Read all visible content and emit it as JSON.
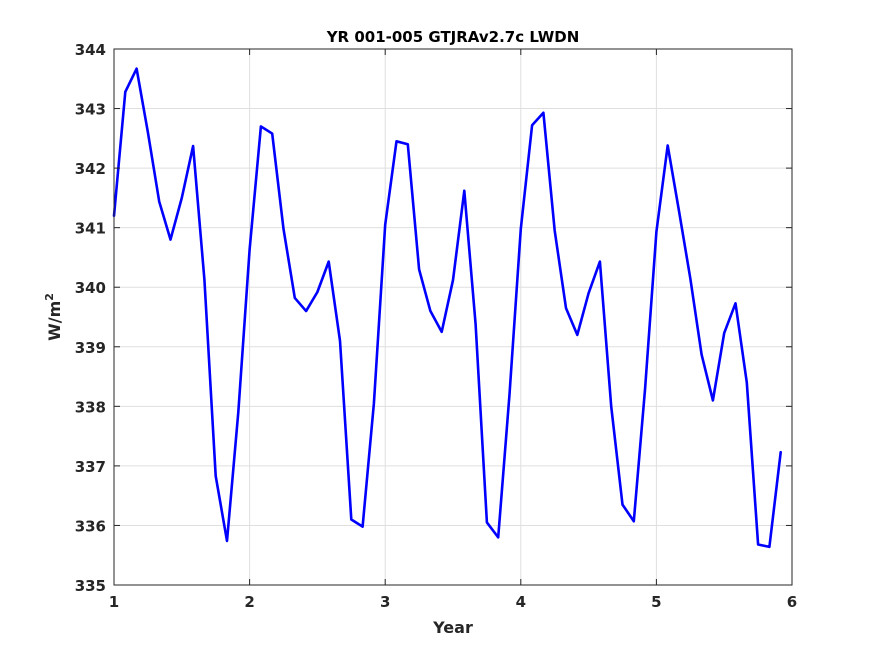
{
  "chart_data": {
    "type": "line",
    "title": "YR 001-005 GTJRAv2.7c LWDN",
    "xlabel": "Year",
    "ylabel_main": "W/m",
    "ylabel_sup": "2",
    "xlim": [
      1,
      6
    ],
    "ylim": [
      335,
      344
    ],
    "xticks": [
      1,
      2,
      3,
      4,
      5,
      6
    ],
    "yticks": [
      335,
      336,
      337,
      338,
      339,
      340,
      341,
      342,
      343,
      344
    ],
    "grid": true,
    "series": [
      {
        "color": "#0000ff",
        "x": [
          1.0,
          1.0833,
          1.1667,
          1.25,
          1.3333,
          1.4167,
          1.5,
          1.5833,
          1.6667,
          1.75,
          1.8333,
          1.9167,
          2.0,
          2.0833,
          2.1667,
          2.25,
          2.3333,
          2.4167,
          2.5,
          2.5833,
          2.6667,
          2.75,
          2.8333,
          2.9167,
          3.0,
          3.0833,
          3.1667,
          3.25,
          3.3333,
          3.4167,
          3.5,
          3.5833,
          3.6667,
          3.75,
          3.8333,
          3.9167,
          4.0,
          4.0833,
          4.1667,
          4.25,
          4.3333,
          4.4167,
          4.5,
          4.5833,
          4.6667,
          4.75,
          4.8333,
          4.9167,
          5.0,
          5.0833,
          5.1667,
          5.25,
          5.3333,
          5.4167,
          5.5,
          5.5833,
          5.6667,
          5.75,
          5.8333,
          5.9167
        ],
        "y": [
          341.2,
          343.28,
          343.67,
          342.6,
          341.44,
          340.8,
          341.5,
          342.37,
          340.13,
          336.83,
          335.74,
          337.9,
          340.63,
          342.7,
          342.58,
          340.98,
          339.82,
          339.6,
          339.92,
          340.43,
          339.1,
          336.1,
          335.98,
          338.05,
          341.05,
          342.45,
          342.4,
          340.3,
          339.6,
          339.25,
          340.12,
          341.62,
          339.38,
          336.05,
          335.8,
          338.2,
          340.98,
          342.72,
          342.93,
          340.95,
          339.65,
          339.2,
          339.9,
          340.43,
          338.0,
          336.35,
          336.07,
          338.3,
          340.93,
          342.38,
          341.28,
          340.15,
          338.87,
          338.1,
          339.23,
          339.73,
          338.4,
          335.68,
          335.64,
          337.23
        ]
      }
    ]
  }
}
